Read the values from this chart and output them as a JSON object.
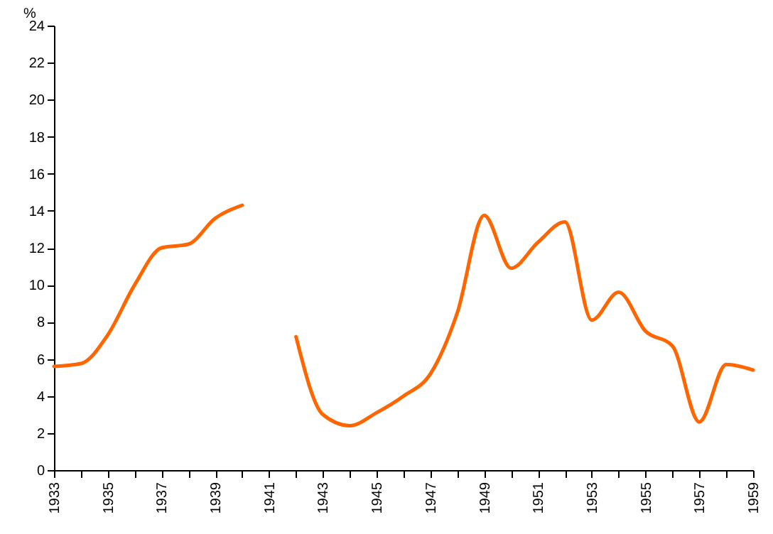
{
  "chart_data": {
    "type": "line",
    "ylabel": "%",
    "x": [
      1933,
      1934,
      1935,
      1936,
      1937,
      1938,
      1939,
      1940,
      1941,
      1942,
      1943,
      1944,
      1945,
      1946,
      1947,
      1948,
      1949,
      1950,
      1951,
      1952,
      1953,
      1954,
      1955,
      1956,
      1957,
      1958,
      1959
    ],
    "series": [
      {
        "color": "#ff6600",
        "values": [
          5.6,
          5.75,
          7.3,
          10.0,
          12.0,
          12.2,
          13.6,
          14.3,
          null,
          7.2,
          3.0,
          2.4,
          3.1,
          4.0,
          5.2,
          8.5,
          13.75,
          10.9,
          12.3,
          13.4,
          8.1,
          9.6,
          7.5,
          6.7,
          2.6,
          5.7,
          5.4
        ]
      }
    ],
    "xlim": [
      1933,
      1959
    ],
    "xticks": [
      1933,
      {
        "value": 1934,
        "label": null
      },
      1935,
      {
        "value": 1936,
        "label": null
      },
      1937,
      {
        "value": 1938,
        "label": null
      },
      1939,
      {
        "value": 1940,
        "label": null
      },
      1941,
      {
        "value": 1942,
        "label": null
      },
      1943,
      {
        "value": 1944,
        "label": null
      },
      1945,
      {
        "value": 1946,
        "label": null
      },
      1947,
      {
        "value": 1948,
        "label": null
      },
      1949,
      {
        "value": 1950,
        "label": null
      },
      1951,
      {
        "value": 1952,
        "label": null
      },
      1953,
      {
        "value": 1954,
        "label": null
      },
      1955,
      {
        "value": 1956,
        "label": null
      },
      1957,
      {
        "value": 1958,
        "label": null
      },
      1959
    ],
    "ylim": [
      0,
      24
    ],
    "yticks": [
      0,
      2,
      4,
      6,
      8,
      10,
      12,
      14,
      16,
      18,
      20,
      22,
      24
    ],
    "grid": false,
    "marker": "none",
    "line_style": "solid"
  }
}
